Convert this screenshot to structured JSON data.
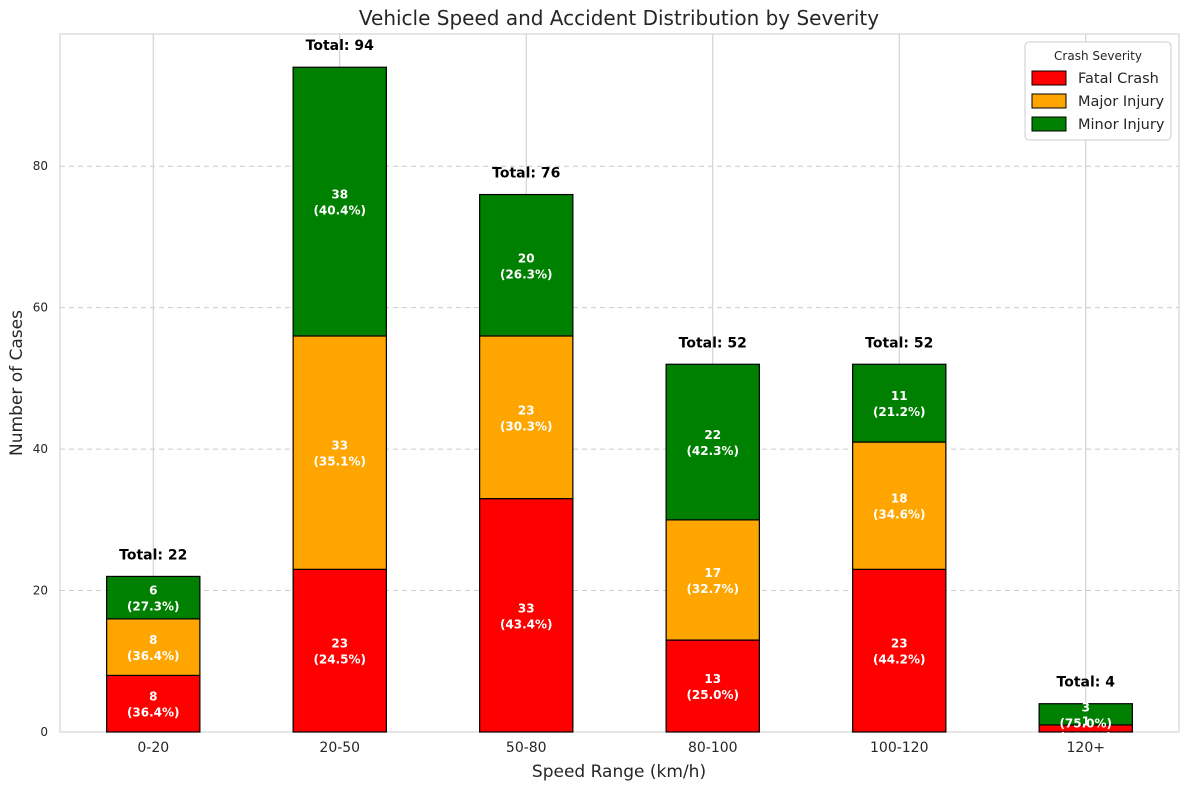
{
  "chart_data": {
    "type": "bar",
    "stacked": true,
    "title": "Vehicle Speed and Accident Distribution by Severity",
    "xlabel": "Speed Range (km/h)",
    "ylabel": "Number of Cases",
    "categories": [
      "0-20",
      "20-50",
      "50-80",
      "80-100",
      "100-120",
      "120+"
    ],
    "series": [
      {
        "name": "Fatal Crash",
        "color": "#ff0000",
        "values": [
          8,
          23,
          33,
          13,
          23,
          1
        ]
      },
      {
        "name": "Major Injury",
        "color": "#ffa500",
        "values": [
          8,
          33,
          23,
          17,
          18,
          0
        ]
      },
      {
        "name": "Minor Injury",
        "color": "#008000",
        "values": [
          6,
          38,
          20,
          22,
          11,
          3
        ]
      }
    ],
    "segment_labels": [
      [
        "8\n(36.4%)",
        "23\n(24.5%)",
        "33\n(43.4%)",
        "13\n(25.0%)",
        "23\n(44.2%)",
        "1\n(25.0%)"
      ],
      [
        "8\n(36.4%)",
        "33\n(35.1%)",
        "23\n(30.3%)",
        "17\n(32.7%)",
        "18\n(34.6%)",
        ""
      ],
      [
        "6\n(27.3%)",
        "38\n(40.4%)",
        "20\n(26.3%)",
        "22\n(42.3%)",
        "11\n(21.2%)",
        "3\n(75.0%)"
      ]
    ],
    "totals": [
      "Total: 22",
      "Total: 94",
      "Total: 76",
      "Total: 52",
      "Total: 52",
      "Total: 4"
    ],
    "yticks": [
      0,
      20,
      40,
      60,
      80
    ],
    "ylim": [
      0,
      98.7
    ],
    "grid": true,
    "legend": {
      "title": "Crash Severity",
      "position": "top-right"
    }
  }
}
